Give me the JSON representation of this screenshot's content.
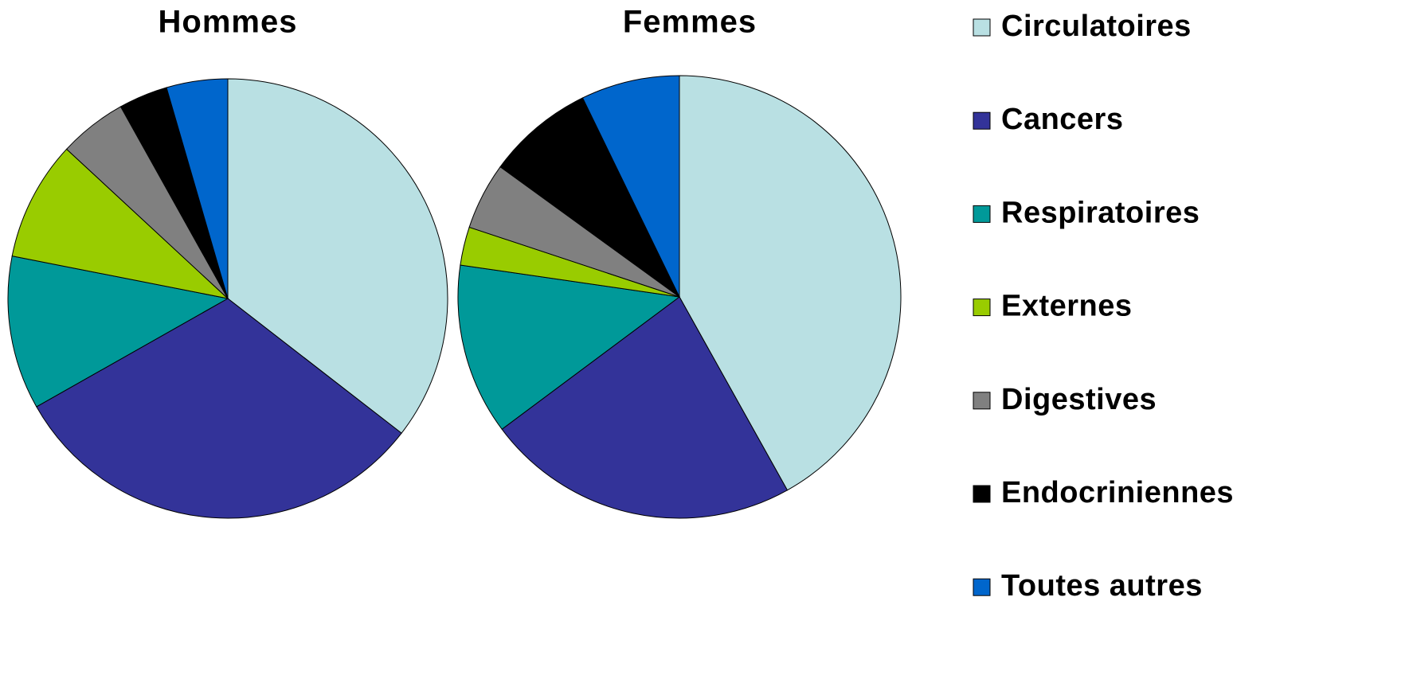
{
  "chart_data": [
    {
      "type": "pie",
      "title": "Hommes",
      "categories": [
        "Circulatoires",
        "Cancers",
        "Respiratoires",
        "Externes",
        "Digestives",
        "Endocriniennes",
        "Toutes autres"
      ],
      "values": [
        35.5,
        31.3,
        11.3,
        8.8,
        5.0,
        3.6,
        4.5
      ],
      "colors": [
        "#b9e0e3",
        "#333399",
        "#009999",
        "#99cc00",
        "#808080",
        "#000000",
        "#0066cc"
      ]
    },
    {
      "type": "pie",
      "title": "Femmes",
      "categories": [
        "Circulatoires",
        "Cancers",
        "Respiratoires",
        "Externes",
        "Digestives",
        "Endocriniennes",
        "Toutes autres"
      ],
      "values": [
        41.9,
        22.9,
        12.5,
        2.8,
        4.9,
        7.8,
        7.2
      ],
      "colors": [
        "#b9e0e3",
        "#333399",
        "#009999",
        "#99cc00",
        "#808080",
        "#000000",
        "#0066cc"
      ]
    }
  ]
}
